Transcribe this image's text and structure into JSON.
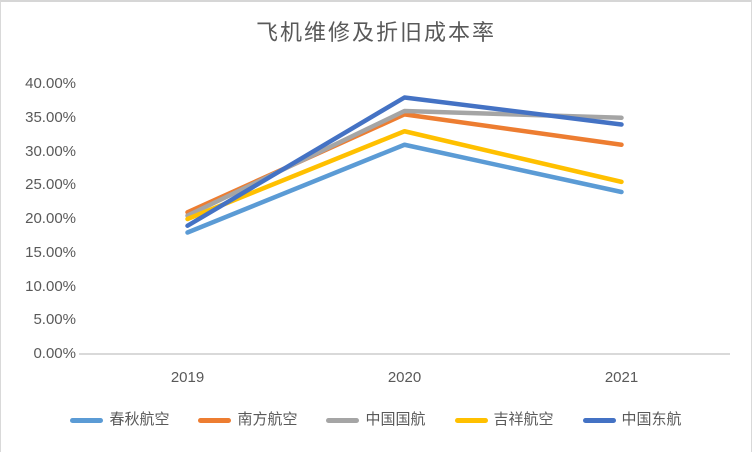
{
  "chart_data": {
    "type": "line",
    "title": "飞机维修及折旧成本率",
    "value_unit": "percent",
    "categories": [
      "2019",
      "2020",
      "2021"
    ],
    "series": [
      {
        "name": "春秋航空",
        "color": "#5B9BD5",
        "values": [
          18,
          31,
          24
        ]
      },
      {
        "name": "南方航空",
        "color": "#ED7D31",
        "values": [
          21,
          35.5,
          31
        ]
      },
      {
        "name": "中国国航",
        "color": "#A5A5A5",
        "values": [
          20.5,
          36,
          35
        ]
      },
      {
        "name": "吉祥航空",
        "color": "#FFC000",
        "values": [
          20,
          33,
          25.5
        ]
      },
      {
        "name": "中国东航",
        "color": "#4472C4",
        "values": [
          19,
          38,
          34
        ]
      }
    ],
    "y_ticks": [
      "40.00%",
      "35.00%",
      "30.00%",
      "25.00%",
      "20.00%",
      "15.00%",
      "10.00%",
      "5.00%",
      "0.00%"
    ],
    "ylim": [
      0,
      40
    ],
    "xlabel": "",
    "ylabel": "",
    "grid": false,
    "legend_position": "bottom",
    "text_color": "#595959",
    "axis_line_color": "#D9D9D9"
  }
}
